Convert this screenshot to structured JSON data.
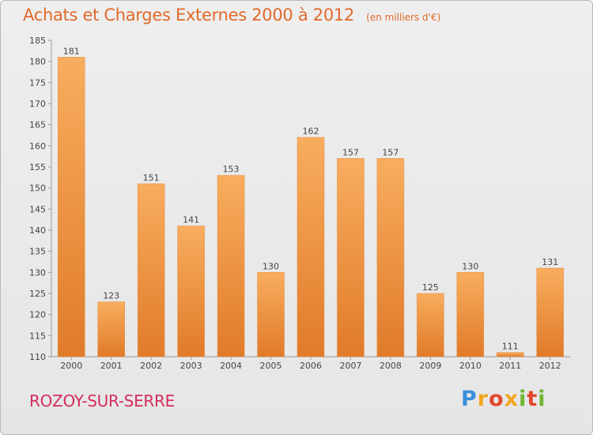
{
  "header": {
    "title": "Achats et Charges Externes 2000 à 2012",
    "unit": "(en milliers d'€)"
  },
  "footer": {
    "city": "ROZOY-SUR-SERRE",
    "logo": "Proxiti"
  },
  "colors": {
    "title": "#e06a2a",
    "city": "#d42d5c",
    "bar_light": "#f7a95a",
    "bar_dark": "#e3812e"
  },
  "chart_data": {
    "type": "bar",
    "title": "Achats et Charges Externes 2000 à 2012",
    "subtitle": "(en milliers d'€)",
    "xlabel": "",
    "ylabel": "",
    "categories": [
      "2000",
      "2001",
      "2002",
      "2003",
      "2004",
      "2005",
      "2006",
      "2007",
      "2008",
      "2009",
      "2010",
      "2011",
      "2012"
    ],
    "values": [
      181,
      123,
      151,
      141,
      153,
      130,
      162,
      157,
      157,
      125,
      130,
      111,
      131
    ],
    "ylim": [
      110,
      185
    ],
    "yticks": [
      110,
      115,
      120,
      125,
      130,
      135,
      140,
      145,
      150,
      155,
      160,
      165,
      170,
      175,
      180,
      185
    ],
    "grid": false,
    "data_labels": true
  }
}
